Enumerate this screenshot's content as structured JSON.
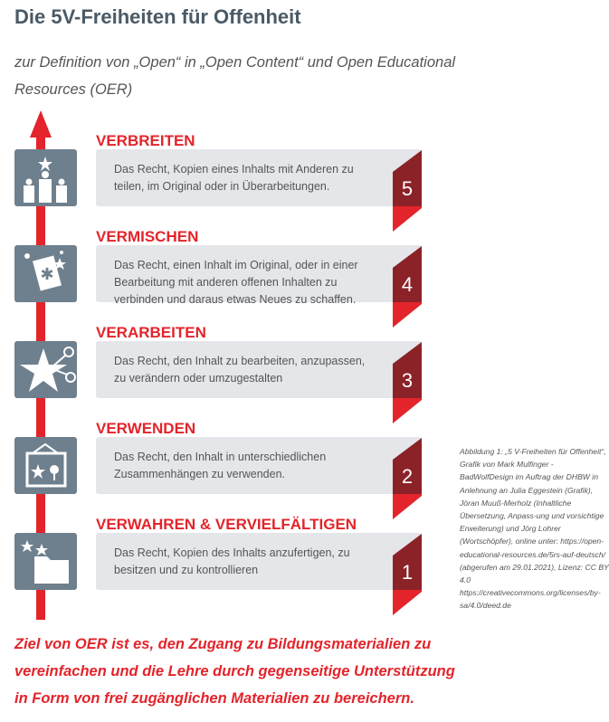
{
  "title": "Die 5V-Freiheiten für Offenheit",
  "subtitle": [
    "zur Definition von „Open“ in „Open Content“ und Open Educational",
    "Resources (OER)"
  ],
  "items": [
    {
      "heading": "VERBREITEN",
      "text": "Das Recht, Kopien eines Inhalts mit Anderen zu teilen, im Original oder in Überarbeitungen.",
      "number": "5",
      "icon": "people-star-icon"
    },
    {
      "heading": "VERMISCHEN",
      "text": "Das Recht, einen Inhalt im Original, oder in einer Bearbeitung mit anderen offenen Inhalten zu verbinden und daraus etwas Neues zu schaffen.",
      "number": "4",
      "icon": "mixing-card-icon"
    },
    {
      "heading": "VERARBEITEN",
      "text": "Das Recht, den Inhalt zu bearbeiten, anzupassen, zu verändern oder umzugestalten",
      "number": "3",
      "icon": "scissors-star-icon"
    },
    {
      "heading": "VERWENDEN",
      "text": "Das Recht, den Inhalt in unterschiedlichen Zusammenhängen zu verwenden.",
      "number": "2",
      "icon": "picture-frame-icon"
    },
    {
      "heading": "VERWAHREN & VERVIELFÄLTIGEN",
      "text": "Das Recht, Kopien des Inhalts anzufertigen, zu besitzen und zu kontrollieren",
      "number": "1",
      "icon": "folder-icon"
    }
  ],
  "caption": "Abbildung 1: „5 V-Freiheiten für Offenheit“, Grafik von Mark Mulfinger - BadWolfDesign im Auftrag der DHBW in Anlehnung an Julia Eggestein (Grafik), Jöran Muuß-Merholz (Inhaltliche Übersetzung, Anpass-ung und vorsichtige Erweiterung) und Jörg Lohrer (Wortschöpfer), online unter: https://open-educational-resources.de/5rs-auf-deutsch/ (abgerufen am 29.01.2021), Lizenz: CC BY 4.0 https://creativecommons.org/licenses/by-sa/4.0/deed.de",
  "goal": [
    "Ziel von OER ist es, den Zugang zu Bildungsmaterialien zu",
    "vereinfachen und die Lehre durch gegenseitige Unterstützung",
    "in Form von frei zugänglichen Materialien zu bereichern."
  ],
  "colors": {
    "accent": "#e3242b",
    "dark_red": "#8b2228",
    "icon_bg": "#6e7f8d",
    "box_bg": "#e4e6e9",
    "title": "#4a5a66"
  }
}
